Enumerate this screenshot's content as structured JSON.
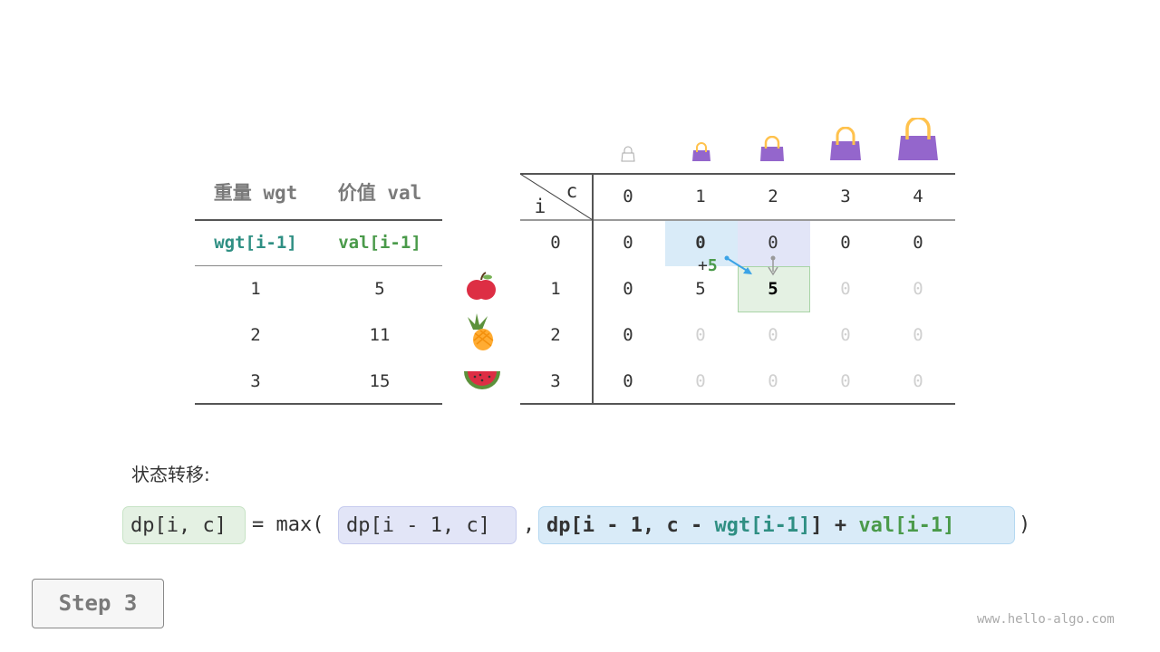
{
  "left_table": {
    "headers": [
      "重量 wgt",
      "价值 val"
    ],
    "subheaders": [
      "wgt[i-1]",
      "val[i-1]"
    ],
    "rows": [
      [
        "1",
        "5"
      ],
      [
        "2",
        "11"
      ],
      [
        "3",
        "15"
      ]
    ]
  },
  "items": [
    "apple-icon",
    "pineapple-icon",
    "watermelon-icon"
  ],
  "dp_table": {
    "corner_c": "c",
    "corner_i": "i",
    "col_headers": [
      "0",
      "1",
      "2",
      "3",
      "4"
    ],
    "row_headers": [
      "0",
      "1",
      "2",
      "3"
    ],
    "rows": [
      [
        "0",
        "0",
        "0",
        "0",
        "0"
      ],
      [
        "0",
        "5",
        "5",
        "0",
        "0"
      ],
      [
        "0",
        "0",
        "0",
        "0",
        "0"
      ],
      [
        "0",
        "0",
        "0",
        "0",
        "0"
      ]
    ],
    "computed_cells": [
      [
        true,
        true,
        true,
        true,
        true
      ],
      [
        true,
        true,
        true,
        false,
        false
      ],
      [
        true,
        false,
        false,
        false,
        false
      ],
      [
        true,
        false,
        false,
        false,
        false
      ]
    ],
    "annotation_plus": "+",
    "annotation_value": "5"
  },
  "colors": {
    "blue_cell": "#d9ebf8",
    "purple_cell": "#e2e5f7",
    "green_cell": "#e4f1e3",
    "teal": "#2f8f83",
    "green": "#4a9a4a",
    "bag": "#9466cc"
  },
  "transition_label": "状态转移:",
  "equation": {
    "lhs": "dp[i, c]",
    "eq": "= max(",
    "opt1": "dp[i - 1, c]",
    "comma": ",",
    "opt2_a": "dp[i - 1, c - ",
    "opt2_wgt": "wgt[i-1]",
    "opt2_b": "] + ",
    "opt2_val": "val[i-1]",
    "close": ")"
  },
  "step_button": "Step 3",
  "watermark": "www.hello-algo.com"
}
